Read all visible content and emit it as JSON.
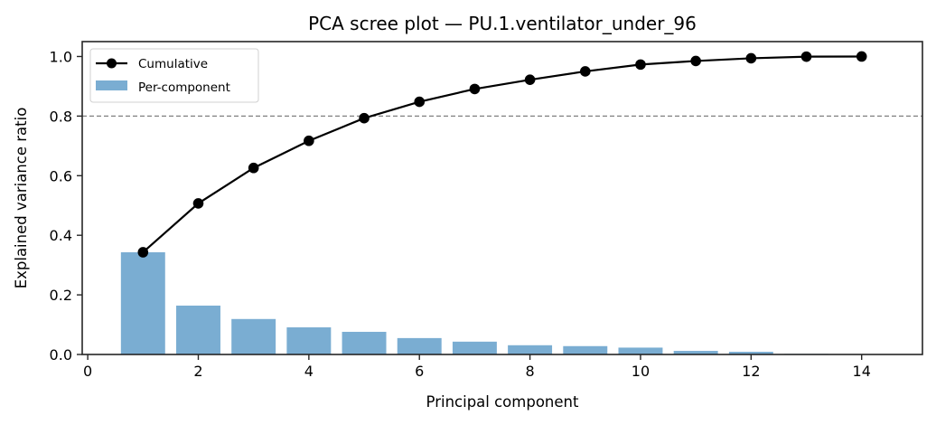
{
  "chart_data": {
    "type": "bar",
    "title": "PCA scree plot — PU.1.ventilator_under_96",
    "xlabel": "Principal component",
    "ylabel": "Explained variance ratio",
    "xlim": [
      -0.1,
      15.1
    ],
    "ylim": [
      0.0,
      1.05
    ],
    "x_ticks": [
      0,
      2,
      4,
      6,
      8,
      10,
      12,
      14
    ],
    "y_ticks": [
      0.0,
      0.2,
      0.4,
      0.6,
      0.8,
      1.0
    ],
    "x_tick_labels": [
      "0",
      "2",
      "4",
      "6",
      "8",
      "10",
      "12",
      "14"
    ],
    "y_tick_labels": [
      "0.0",
      "0.2",
      "0.4",
      "0.6",
      "0.8",
      "1.0"
    ],
    "grid": false,
    "legend_position": "upper left",
    "categories": [
      1,
      2,
      3,
      4,
      5,
      6,
      7,
      8,
      9,
      10,
      11,
      12,
      13,
      14
    ],
    "series": [
      {
        "name": "Per-component",
        "type": "bar",
        "color": "#7aadd2",
        "values": [
          0.343,
          0.164,
          0.119,
          0.091,
          0.076,
          0.055,
          0.043,
          0.031,
          0.028,
          0.023,
          0.012,
          0.009,
          0.002,
          0.0005
        ]
      },
      {
        "name": "Cumulative",
        "type": "line",
        "marker": "circle",
        "color": "#000000",
        "values": [
          0.343,
          0.507,
          0.626,
          0.717,
          0.793,
          0.848,
          0.891,
          0.922,
          0.95,
          0.973,
          0.985,
          0.994,
          0.9995,
          1.0
        ]
      }
    ],
    "annotations": [
      {
        "type": "hline",
        "y": 0.8,
        "style": "dashed",
        "color": "#808080"
      }
    ]
  },
  "legend": {
    "items": [
      {
        "label": "Cumulative",
        "kind": "line-marker"
      },
      {
        "label": "Per-component",
        "kind": "patch"
      }
    ]
  }
}
